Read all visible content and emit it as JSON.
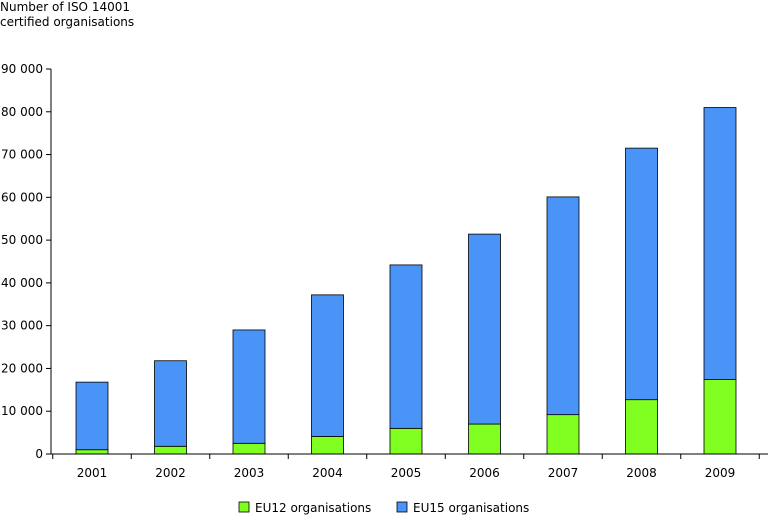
{
  "chart_data": {
    "type": "bar",
    "stacked": true,
    "ylabel": "Number of ISO 14001\ncertified organisations",
    "xlabel": "",
    "categories": [
      "2001",
      "2002",
      "2003",
      "2004",
      "2005",
      "2006",
      "2007",
      "2008",
      "2009"
    ],
    "series": [
      {
        "name": "EU12 organisations",
        "color": "#80ff20",
        "values": [
          1000,
          1800,
          2500,
          4100,
          6000,
          7000,
          9200,
          12700,
          17400
        ]
      },
      {
        "name": "EU15 organisations",
        "color": "#4a94f8",
        "values": [
          15800,
          20000,
          26500,
          33100,
          38200,
          44400,
          50900,
          58800,
          63600
        ]
      }
    ],
    "ylim": [
      0,
      90000
    ],
    "yticks": [
      0,
      10000,
      20000,
      30000,
      40000,
      50000,
      60000,
      70000,
      80000,
      90000
    ],
    "ytick_labels": [
      "0",
      "10 000",
      "20 000",
      "30 000",
      "40 000",
      "50 000",
      "60 000",
      "70 000",
      "80 000",
      "90 000"
    ],
    "grid": false,
    "legend": "bottom"
  }
}
